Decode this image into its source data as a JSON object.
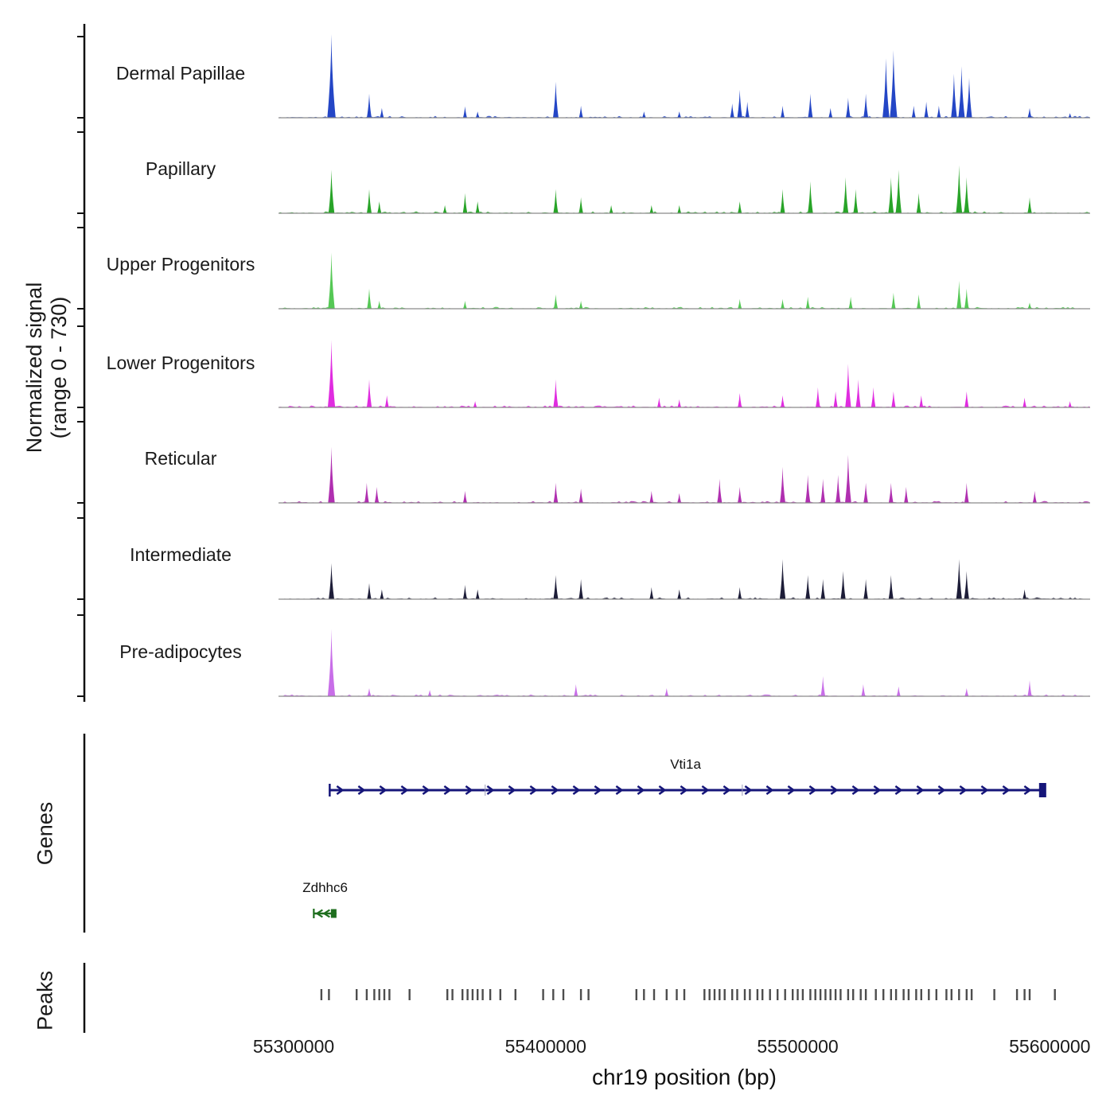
{
  "figure": {
    "ylabel_line1": "Normalized signal",
    "ylabel_line2": "(range 0 - 730)",
    "genes_label": "Genes",
    "peaks_label": "Peaks",
    "xlabel": "chr19 position (bp)"
  },
  "chart_data": {
    "type": "area",
    "title": "",
    "xlabel": "chr19 position (bp)",
    "ylabel": "Normalized signal (range 0 - 730)",
    "xlim": [
      55294000,
      55616000
    ],
    "y_range": [
      0,
      730
    ],
    "x_ticks": [
      55300000,
      55400000,
      55500000,
      55600000
    ],
    "x_tick_labels": [
      "55300000",
      "55400000",
      "55500000",
      "55600000"
    ],
    "tracks": [
      {
        "name": "Dermal Papillae",
        "color": "#2446C6",
        "peaks": [
          [
            55315000,
            730
          ],
          [
            55330000,
            210
          ],
          [
            55335000,
            85
          ],
          [
            55368000,
            100
          ],
          [
            55373000,
            55
          ],
          [
            55404000,
            315
          ],
          [
            55414000,
            105
          ],
          [
            55439000,
            55
          ],
          [
            55453000,
            55
          ],
          [
            55474000,
            125
          ],
          [
            55477000,
            245
          ],
          [
            55480000,
            140
          ],
          [
            55494000,
            105
          ],
          [
            55505000,
            210
          ],
          [
            55513000,
            85
          ],
          [
            55520000,
            175
          ],
          [
            55527000,
            210
          ],
          [
            55535000,
            520
          ],
          [
            55538000,
            590
          ],
          [
            55546000,
            105
          ],
          [
            55551000,
            140
          ],
          [
            55556000,
            105
          ],
          [
            55562000,
            385
          ],
          [
            55565000,
            450
          ],
          [
            55568000,
            350
          ],
          [
            55592000,
            85
          ],
          [
            55608000,
            40
          ]
        ]
      },
      {
        "name": "Papillary",
        "color": "#28A428",
        "peaks": [
          [
            55315000,
            380
          ],
          [
            55330000,
            210
          ],
          [
            55334000,
            105
          ],
          [
            55360000,
            70
          ],
          [
            55368000,
            175
          ],
          [
            55373000,
            105
          ],
          [
            55404000,
            210
          ],
          [
            55414000,
            140
          ],
          [
            55426000,
            70
          ],
          [
            55442000,
            70
          ],
          [
            55453000,
            70
          ],
          [
            55477000,
            105
          ],
          [
            55494000,
            210
          ],
          [
            55505000,
            280
          ],
          [
            55519000,
            315
          ],
          [
            55523000,
            210
          ],
          [
            55537000,
            315
          ],
          [
            55540000,
            380
          ],
          [
            55548000,
            175
          ],
          [
            55564000,
            420
          ],
          [
            55567000,
            315
          ],
          [
            55592000,
            140
          ]
        ]
      },
      {
        "name": "Upper Progenitors",
        "color": "#55C855",
        "peaks": [
          [
            55315000,
            490
          ],
          [
            55330000,
            175
          ],
          [
            55334000,
            70
          ],
          [
            55368000,
            70
          ],
          [
            55404000,
            125
          ],
          [
            55414000,
            70
          ],
          [
            55477000,
            85
          ],
          [
            55494000,
            85
          ],
          [
            55504000,
            105
          ],
          [
            55521000,
            105
          ],
          [
            55538000,
            140
          ],
          [
            55548000,
            125
          ],
          [
            55564000,
            245
          ],
          [
            55567000,
            175
          ],
          [
            55592000,
            55
          ]
        ]
      },
      {
        "name": "Lower Progenitors",
        "color": "#E02CE0",
        "peaks": [
          [
            55315000,
            590
          ],
          [
            55330000,
            245
          ],
          [
            55337000,
            105
          ],
          [
            55372000,
            55
          ],
          [
            55404000,
            245
          ],
          [
            55445000,
            85
          ],
          [
            55453000,
            70
          ],
          [
            55477000,
            125
          ],
          [
            55494000,
            105
          ],
          [
            55508000,
            175
          ],
          [
            55515000,
            140
          ],
          [
            55520000,
            380
          ],
          [
            55524000,
            245
          ],
          [
            55530000,
            175
          ],
          [
            55538000,
            140
          ],
          [
            55549000,
            105
          ],
          [
            55567000,
            140
          ],
          [
            55590000,
            85
          ],
          [
            55608000,
            55
          ]
        ]
      },
      {
        "name": "Reticular",
        "color": "#B02FB0",
        "peaks": [
          [
            55315000,
            490
          ],
          [
            55329000,
            175
          ],
          [
            55333000,
            140
          ],
          [
            55368000,
            105
          ],
          [
            55404000,
            175
          ],
          [
            55414000,
            125
          ],
          [
            55442000,
            105
          ],
          [
            55453000,
            85
          ],
          [
            55469000,
            210
          ],
          [
            55477000,
            140
          ],
          [
            55494000,
            315
          ],
          [
            55504000,
            245
          ],
          [
            55510000,
            210
          ],
          [
            55516000,
            245
          ],
          [
            55520000,
            420
          ],
          [
            55527000,
            175
          ],
          [
            55537000,
            175
          ],
          [
            55543000,
            140
          ],
          [
            55567000,
            175
          ],
          [
            55594000,
            105
          ]
        ]
      },
      {
        "name": "Intermediate",
        "color": "#1D1D38",
        "peaks": [
          [
            55315000,
            315
          ],
          [
            55330000,
            140
          ],
          [
            55335000,
            85
          ],
          [
            55368000,
            125
          ],
          [
            55373000,
            85
          ],
          [
            55404000,
            210
          ],
          [
            55414000,
            175
          ],
          [
            55442000,
            105
          ],
          [
            55453000,
            85
          ],
          [
            55477000,
            105
          ],
          [
            55494000,
            350
          ],
          [
            55504000,
            210
          ],
          [
            55510000,
            175
          ],
          [
            55518000,
            245
          ],
          [
            55527000,
            175
          ],
          [
            55537000,
            210
          ],
          [
            55564000,
            350
          ],
          [
            55567000,
            245
          ],
          [
            55590000,
            85
          ]
        ]
      },
      {
        "name": "Pre-adipocytes",
        "color": "#C86EE8",
        "peaks": [
          [
            55315000,
            590
          ],
          [
            55330000,
            70
          ],
          [
            55354000,
            55
          ],
          [
            55412000,
            105
          ],
          [
            55448000,
            70
          ],
          [
            55510000,
            175
          ],
          [
            55526000,
            105
          ],
          [
            55540000,
            85
          ],
          [
            55567000,
            70
          ],
          [
            55592000,
            140
          ]
        ]
      }
    ],
    "genes": [
      {
        "name": "Vti1a",
        "start": 55314000,
        "end": 55597000,
        "strand": "+",
        "color": "#16167A",
        "exon_ticks": [
          55376000,
          55478000
        ]
      },
      {
        "name": "Zdhhc6",
        "start": 55308000,
        "end": 55317000,
        "strand": "-",
        "color": "#1E6E1E",
        "exon_ticks": []
      }
    ],
    "peaks_track": [
      55311000,
      55314000,
      55325000,
      55329000,
      55332000,
      55334000,
      55336000,
      55338000,
      55346000,
      55361000,
      55363000,
      55367000,
      55369000,
      55371000,
      55373000,
      55375000,
      55378000,
      55382000,
      55388000,
      55399000,
      55403000,
      55407000,
      55414000,
      55417000,
      55436000,
      55439000,
      55443000,
      55448000,
      55452000,
      55455000,
      55463000,
      55465000,
      55467000,
      55469000,
      55471000,
      55474000,
      55476000,
      55479000,
      55481000,
      55484000,
      55486000,
      55489000,
      55492000,
      55495000,
      55498000,
      55500000,
      55502000,
      55505000,
      55507000,
      55509000,
      55511000,
      55513000,
      55515000,
      55517000,
      55520000,
      55522000,
      55525000,
      55527000,
      55531000,
      55534000,
      55537000,
      55539000,
      55542000,
      55544000,
      55547000,
      55549000,
      55552000,
      55555000,
      55559000,
      55561000,
      55564000,
      55567000,
      55569000,
      55578000,
      55587000,
      55590000,
      55592000,
      55602000
    ],
    "peaks_color": "#4D4D4D"
  }
}
